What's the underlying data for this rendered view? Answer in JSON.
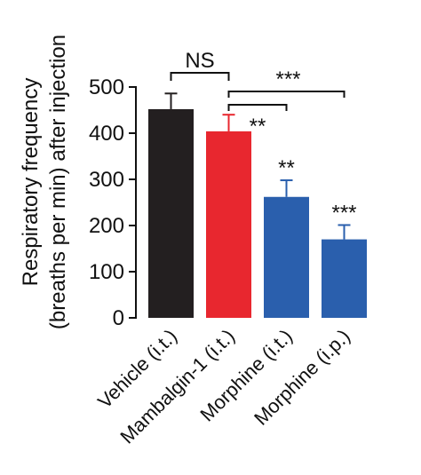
{
  "chart_data": {
    "type": "bar",
    "title": "",
    "xlabel": "",
    "ylabel_lines": [
      "Respiratory frequency",
      "(breaths per min) after injection"
    ],
    "ylim": [
      0,
      500
    ],
    "yticks": [
      0,
      100,
      200,
      300,
      400,
      500
    ],
    "categories": [
      "Vehicle (i.t.)",
      "Mambalgin-1 (i.t.)",
      "Morphine (i.t.)",
      "Morphine (i.p.)"
    ],
    "values": [
      452,
      404,
      262,
      170
    ],
    "errors": [
      34,
      36,
      36,
      31
    ],
    "colors": [
      "#231f20",
      "#e8272f",
      "#2a5fad",
      "#2a5fad"
    ],
    "bar_significance": [
      "",
      "",
      "**",
      "***"
    ],
    "comparisons": [
      {
        "from": "Vehicle (i.t.)",
        "to": "Mambalgin-1 (i.t.)",
        "label": "NS"
      },
      {
        "from": "Mambalgin-1 (i.t.)",
        "to": "Morphine (i.t.)",
        "label": "**"
      },
      {
        "from": "Mambalgin-1 (i.t.)",
        "to": "Morphine (i.p.)",
        "label": "***"
      }
    ],
    "grid": false,
    "legend": "none"
  }
}
